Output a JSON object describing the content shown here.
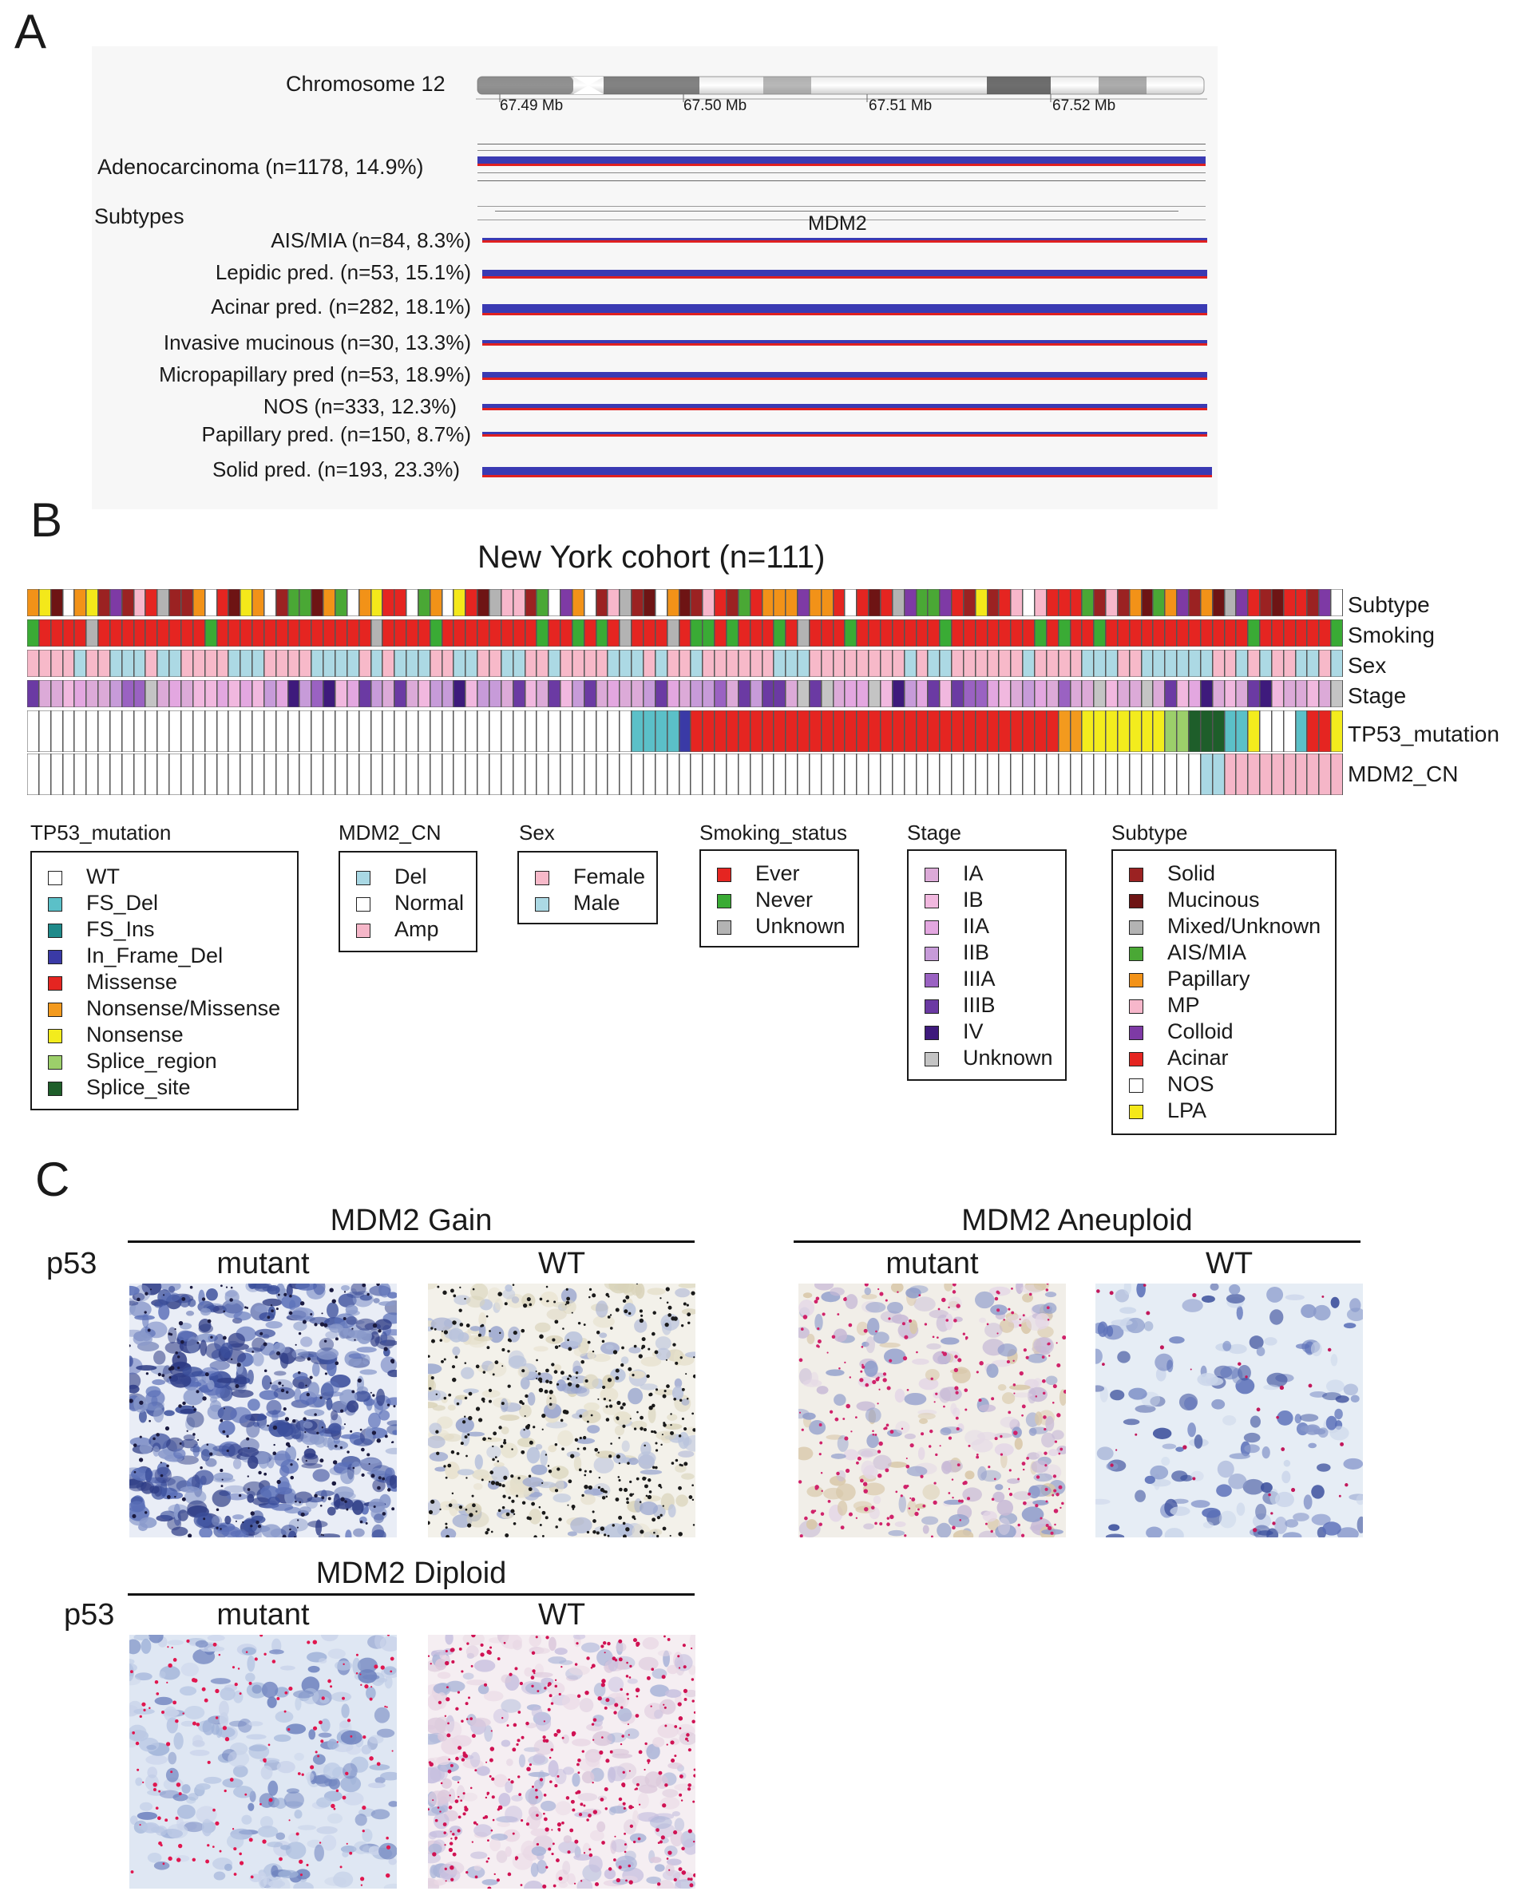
{
  "panel_labels": {
    "a": "A",
    "b": "B",
    "c": "C"
  },
  "panelA": {
    "chromosome_label": "Chromosome 12",
    "ticks": [
      "67.49 Mb",
      "67.50 Mb",
      "67.51 Mb",
      "67.52 Mb"
    ],
    "adeno_label": "Adenocarcinoma (n=1178, 14.9%)",
    "subtypes_header": "Subtypes",
    "gene_label": "MDM2",
    "subtype_rows": [
      {
        "label": "AIS/MIA (n=84, 8.3%)"
      },
      {
        "label": "Lepidic pred. (n=53, 15.1%)"
      },
      {
        "label": "Acinar pred. (n=282, 18.1%)"
      },
      {
        "label": "Invasive mucinous (n=30, 13.3%)"
      },
      {
        "label": "Micropapillary pred (n=53, 18.9%)"
      },
      {
        "label": "NOS (n=333, 12.3%)"
      },
      {
        "label": "Papillary pred. (n=150, 8.7%)"
      },
      {
        "label": "Solid pred.  (n=193, 23.3%)"
      }
    ],
    "colors": {
      "amp": "#3a3ab3",
      "del": "#e02020"
    }
  },
  "panelB": {
    "title": "New York cohort (n=111)",
    "lanes": [
      "Subtype",
      "Smoking",
      "Sex",
      "Stage",
      "TP53_mutation",
      "MDM2_CN"
    ],
    "legends": {
      "tp53": {
        "title": "TP53_mutation",
        "items": [
          {
            "label": "WT",
            "color": "#ffffff"
          },
          {
            "label": "FS_Del",
            "color": "#5bc0c8"
          },
          {
            "label": "FS_Ins",
            "color": "#1f8a8a"
          },
          {
            "label": "In_Frame_Del",
            "color": "#3a3aa6"
          },
          {
            "label": "Missense",
            "color": "#e52521"
          },
          {
            "label": "Nonsense/Missense",
            "color": "#f39a1e"
          },
          {
            "label": "Nonsense",
            "color": "#f3ec1d"
          },
          {
            "label": "Splice_region",
            "color": "#9ccf6a"
          },
          {
            "label": "Splice_site",
            "color": "#1e5e2a"
          }
        ]
      },
      "mdm2": {
        "title": "MDM2_CN",
        "items": [
          {
            "label": "Del",
            "color": "#a9d8e4"
          },
          {
            "label": "Normal",
            "color": "#ffffff"
          },
          {
            "label": "Amp",
            "color": "#f5b6c8"
          }
        ]
      },
      "sex": {
        "title": "Sex",
        "items": [
          {
            "label": "Female",
            "color": "#f7b9c9"
          },
          {
            "label": "Male",
            "color": "#acd9e4"
          }
        ]
      },
      "smoking": {
        "title": "Smoking_status",
        "items": [
          {
            "label": "Ever",
            "color": "#e52521"
          },
          {
            "label": "Never",
            "color": "#3aab35"
          },
          {
            "label": "Unknown",
            "color": "#b3b3b3"
          }
        ]
      },
      "stage": {
        "title": "Stage",
        "items": [
          {
            "label": "IA",
            "color": "#dcaad8"
          },
          {
            "label": "IB",
            "color": "#f1b8df"
          },
          {
            "label": "IIA",
            "color": "#e3a7e0"
          },
          {
            "label": "IIB",
            "color": "#c79bd9"
          },
          {
            "label": "IIIA",
            "color": "#9a62c2"
          },
          {
            "label": "IIIB",
            "color": "#6b3aa3"
          },
          {
            "label": "IV",
            "color": "#3e1a7c"
          },
          {
            "label": "Unknown",
            "color": "#c4c4c4"
          }
        ]
      },
      "subtype": {
        "title": "Subtype",
        "items": [
          {
            "label": "Solid",
            "color": "#9b2222"
          },
          {
            "label": "Mucinous",
            "color": "#6e1414"
          },
          {
            "label": "Mixed/Unknown",
            "color": "#b3b3b3"
          },
          {
            "label": "AIS/MIA",
            "color": "#4aa835"
          },
          {
            "label": "Papillary",
            "color": "#f29218"
          },
          {
            "label": "MP",
            "color": "#f7b7cb"
          },
          {
            "label": "Colloid",
            "color": "#7e3aa5"
          },
          {
            "label": "Acinar",
            "color": "#e52521"
          },
          {
            "label": "NOS",
            "color": "#ffffff"
          },
          {
            "label": "LPA",
            "color": "#f4e81a"
          }
        ]
      }
    }
  },
  "panelC": {
    "row_label": "p53",
    "groups": [
      {
        "title": "MDM2 Gain",
        "cols": [
          "mutant",
          "WT"
        ]
      },
      {
        "title": "MDM2 Aneuploid",
        "cols": [
          "mutant",
          "WT"
        ]
      },
      {
        "title": "MDM2 Diploid",
        "cols": [
          "mutant",
          "WT"
        ]
      }
    ]
  }
}
